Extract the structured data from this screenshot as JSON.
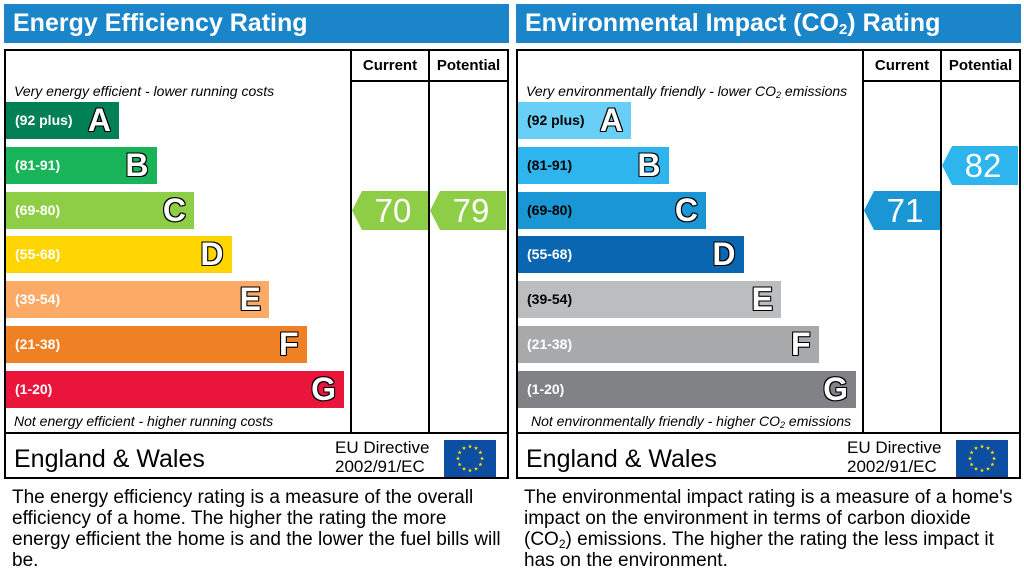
{
  "eer": {
    "title": "Energy Efficiency Rating",
    "col_current": "Current",
    "col_potential": "Potential",
    "top_note": "Very energy efficient - lower running costs",
    "bottom_note": "Not energy efficient - higher running costs",
    "region": "England & Wales",
    "directive_line1": "EU Directive",
    "directive_line2": "2002/91/EC",
    "description": "The energy efficiency rating is a measure of the overall efficiency of a home. The higher the rating the more energy efficient the home is and the lower the fuel bills will be."
  },
  "ei": {
    "title_part1": "Environmental Impact (CO",
    "title_sub": "2",
    "title_part2": ") Rating",
    "col_current": "Current",
    "col_potential": "Potential",
    "top_note_part1": "Very environmentally friendly - lower CO",
    "top_note_sub": "2",
    "top_note_part2": " emissions",
    "bottom_note_part1": "Not environmentally friendly - higher CO",
    "bottom_note_sub": "2",
    "bottom_note_part2": " emissions",
    "region": "England & Wales",
    "directive_line1": "EU Directive",
    "directive_line2": "2002/91/EC",
    "description_part1": "The environmental impact rating is a measure of a home's impact on the environment in terms of carbon dioxide (CO",
    "description_sub": "2",
    "description_part2": ") emissions. The higher the rating the less impact it has on the environment."
  },
  "chart_data": [
    {
      "type": "bar",
      "title": "Energy Efficiency Rating",
      "categories": [
        "A",
        "B",
        "C",
        "D",
        "E",
        "F",
        "G"
      ],
      "bands": [
        {
          "letter": "A",
          "range": "(92 plus)",
          "color": "#008054"
        },
        {
          "letter": "B",
          "range": "(81-91)",
          "color": "#19b459"
        },
        {
          "letter": "C",
          "range": "(69-80)",
          "color": "#8dce46"
        },
        {
          "letter": "D",
          "range": "(55-68)",
          "color": "#ffd500"
        },
        {
          "letter": "E",
          "range": "(39-54)",
          "color": "#fcaa65"
        },
        {
          "letter": "F",
          "range": "(21-38)",
          "color": "#ef8023"
        },
        {
          "letter": "G",
          "range": "(1-20)",
          "color": "#e9153b"
        }
      ],
      "current": {
        "value": 70,
        "band": "C",
        "color": "#8dce46"
      },
      "potential": {
        "value": 79,
        "band": "C",
        "color": "#8dce46"
      }
    },
    {
      "type": "bar",
      "title": "Environmental Impact (CO2) Rating",
      "categories": [
        "A",
        "B",
        "C",
        "D",
        "E",
        "F",
        "G"
      ],
      "bands": [
        {
          "letter": "A",
          "range": "(92 plus)",
          "color": "#6acff6",
          "dark_text": true
        },
        {
          "letter": "B",
          "range": "(81-91)",
          "color": "#2eb5ee",
          "dark_text": true
        },
        {
          "letter": "C",
          "range": "(69-80)",
          "color": "#1b96d4",
          "dark_text": true
        },
        {
          "letter": "D",
          "range": "(55-68)",
          "color": "#0b66b1"
        },
        {
          "letter": "E",
          "range": "(39-54)",
          "color": "#bbbdbf",
          "dark_text": true
        },
        {
          "letter": "F",
          "range": "(21-38)",
          "color": "#a7a9ab"
        },
        {
          "letter": "G",
          "range": "(1-20)",
          "color": "#808285"
        }
      ],
      "current": {
        "value": 71,
        "band": "C",
        "color": "#1b96d4"
      },
      "potential": {
        "value": 82,
        "band": "B",
        "color": "#2eb5ee"
      }
    }
  ]
}
